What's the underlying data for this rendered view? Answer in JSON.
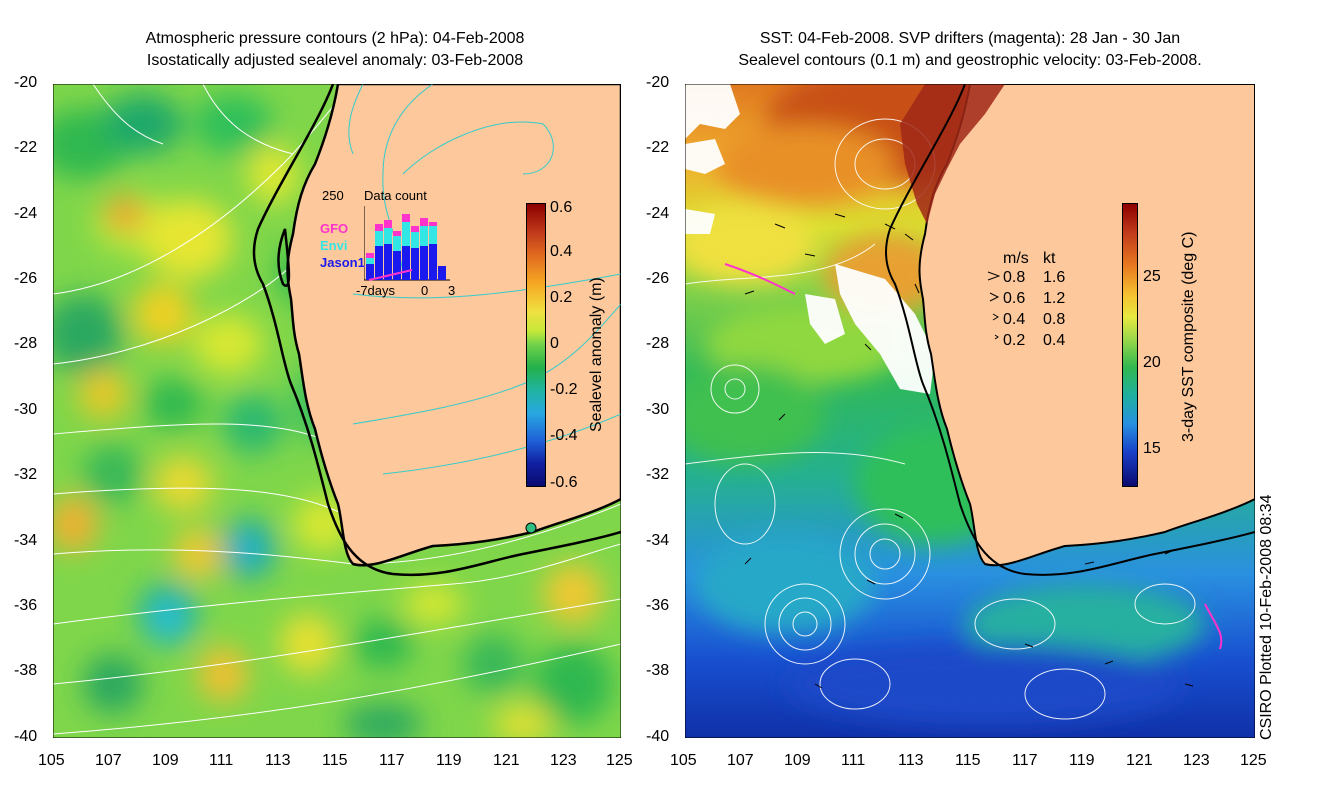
{
  "left_panel": {
    "title_line1": "Atmospheric pressure contours (2 hPa): 04-Feb-2008",
    "title_line2": "Isostatically adjusted sealevel anomaly: 03-Feb-2008",
    "colorbar": {
      "label": "Sealevel anomaly (m)",
      "ticks": [
        "0.6",
        "0.4",
        "0.2",
        "0",
        "-0.2",
        "-0.4",
        "-0.6"
      ],
      "range": [
        -0.6,
        0.6
      ]
    },
    "inset": {
      "title": "Data count",
      "ymax_label": "250",
      "xtick_left": "-7days",
      "xtick_mid": "0",
      "xtick_right": "3",
      "legend": [
        {
          "name": "GFO",
          "color": "#ff33cc"
        },
        {
          "name": "Envi",
          "color": "#33e6e6"
        },
        {
          "name": "Jason1",
          "color": "#1a1aee"
        }
      ]
    }
  },
  "right_panel": {
    "title_line1": "SST: 04-Feb-2008. SVP drifters (magenta): 28 Jan - 30 Jan",
    "title_line2": "Sealevel contours (0.1 m) and geostrophic velocity: 03-Feb-2008.",
    "colorbar": {
      "label": "3-day SST composite (deg C)",
      "ticks": [
        "25",
        "20",
        "15"
      ],
      "range": [
        13,
        30
      ]
    },
    "velocity_legend": {
      "header_ms": "m/s",
      "header_kt": "kt",
      "rows": [
        {
          "ms": "0.8",
          "kt": "1.6"
        },
        {
          "ms": "0.6",
          "kt": "1.2"
        },
        {
          "ms": "0.4",
          "kt": "0.8"
        },
        {
          "ms": "0.2",
          "kt": "0.4"
        }
      ]
    }
  },
  "axes": {
    "y_ticks": [
      "-20",
      "-22",
      "-24",
      "-26",
      "-28",
      "-30",
      "-32",
      "-34",
      "-36",
      "-38",
      "-40"
    ],
    "x_ticks": [
      "105",
      "107",
      "109",
      "111",
      "113",
      "115",
      "117",
      "119",
      "121",
      "123",
      "125"
    ]
  },
  "footer_note": "CSIRO Plotted 10-Feb-2008 08:34",
  "colors": {
    "land": "#fcc89c",
    "coast": "#000000",
    "ocean_anomaly_base": "#7fd64a",
    "pressure_contours": "#ffffff",
    "land_contours": "#33cccc"
  }
}
